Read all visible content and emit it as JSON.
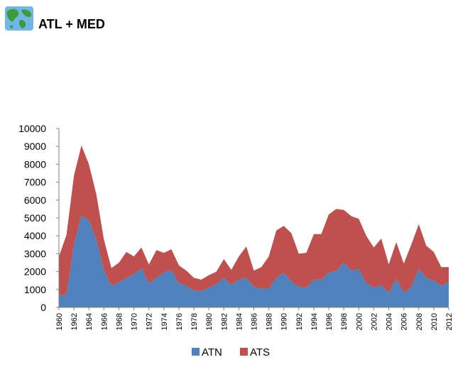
{
  "header": {
    "logo_icon": "globe-icon",
    "title": "ATL + MED"
  },
  "chart_data": {
    "type": "area",
    "stacked": true,
    "ylim": [
      0,
      10000
    ],
    "yticks": [
      0,
      1000,
      2000,
      3000,
      4000,
      5000,
      6000,
      7000,
      8000,
      9000,
      10000
    ],
    "x": [
      1960,
      1961,
      1962,
      1963,
      1964,
      1965,
      1966,
      1967,
      1968,
      1969,
      1970,
      1971,
      1972,
      1973,
      1974,
      1975,
      1976,
      1977,
      1978,
      1979,
      1980,
      1981,
      1982,
      1983,
      1984,
      1985,
      1986,
      1987,
      1988,
      1989,
      1990,
      1991,
      1992,
      1993,
      1994,
      1995,
      1996,
      1997,
      1998,
      1999,
      2000,
      2001,
      2002,
      2003,
      2004,
      2005,
      2006,
      2007,
      2008,
      2009,
      2010,
      2011,
      2012
    ],
    "xtick_labels": [
      "1960",
      "1962",
      "1964",
      "1966",
      "1968",
      "1970",
      "1972",
      "1974",
      "1976",
      "1978",
      "1980",
      "1982",
      "1984",
      "1986",
      "1988",
      "1990",
      "1992",
      "1994",
      "1996",
      "1998",
      "2000",
      "2002",
      "2004",
      "2006",
      "2008",
      "2010",
      "2012"
    ],
    "series": [
      {
        "name": "ATN",
        "color": "#4f81bd",
        "values": [
          700,
          700,
          3500,
          5150,
          4850,
          3800,
          2100,
          1200,
          1400,
          1650,
          1850,
          2200,
          1350,
          1650,
          1950,
          2100,
          1350,
          1200,
          950,
          900,
          1100,
          1300,
          1650,
          1250,
          1550,
          1650,
          1150,
          1050,
          1050,
          1650,
          1950,
          1450,
          1150,
          1100,
          1550,
          1550,
          1950,
          2050,
          2500,
          2050,
          2150,
          1350,
          1100,
          1250,
          800,
          1600,
          800,
          1150,
          2150,
          1650,
          1500,
          1200,
          1450
        ]
      },
      {
        "name": "ATS",
        "color": "#c0504d",
        "values": [
          2150,
          3350,
          3850,
          3900,
          3150,
          2500,
          1700,
          1000,
          1100,
          1450,
          1000,
          1150,
          1050,
          1550,
          1100,
          1150,
          1000,
          850,
          700,
          650,
          700,
          700,
          1050,
          850,
          1300,
          1750,
          900,
          1200,
          1800,
          2650,
          2600,
          2700,
          1850,
          1950,
          2550,
          2550,
          3250,
          3450,
          2950,
          3050,
          2800,
          2650,
          2250,
          2600,
          1600,
          2050,
          1650,
          2350,
          2500,
          1800,
          1600,
          1050,
          800
        ]
      }
    ],
    "legend": {
      "position": "bottom",
      "entries": [
        "ATN",
        "ATS"
      ]
    }
  }
}
